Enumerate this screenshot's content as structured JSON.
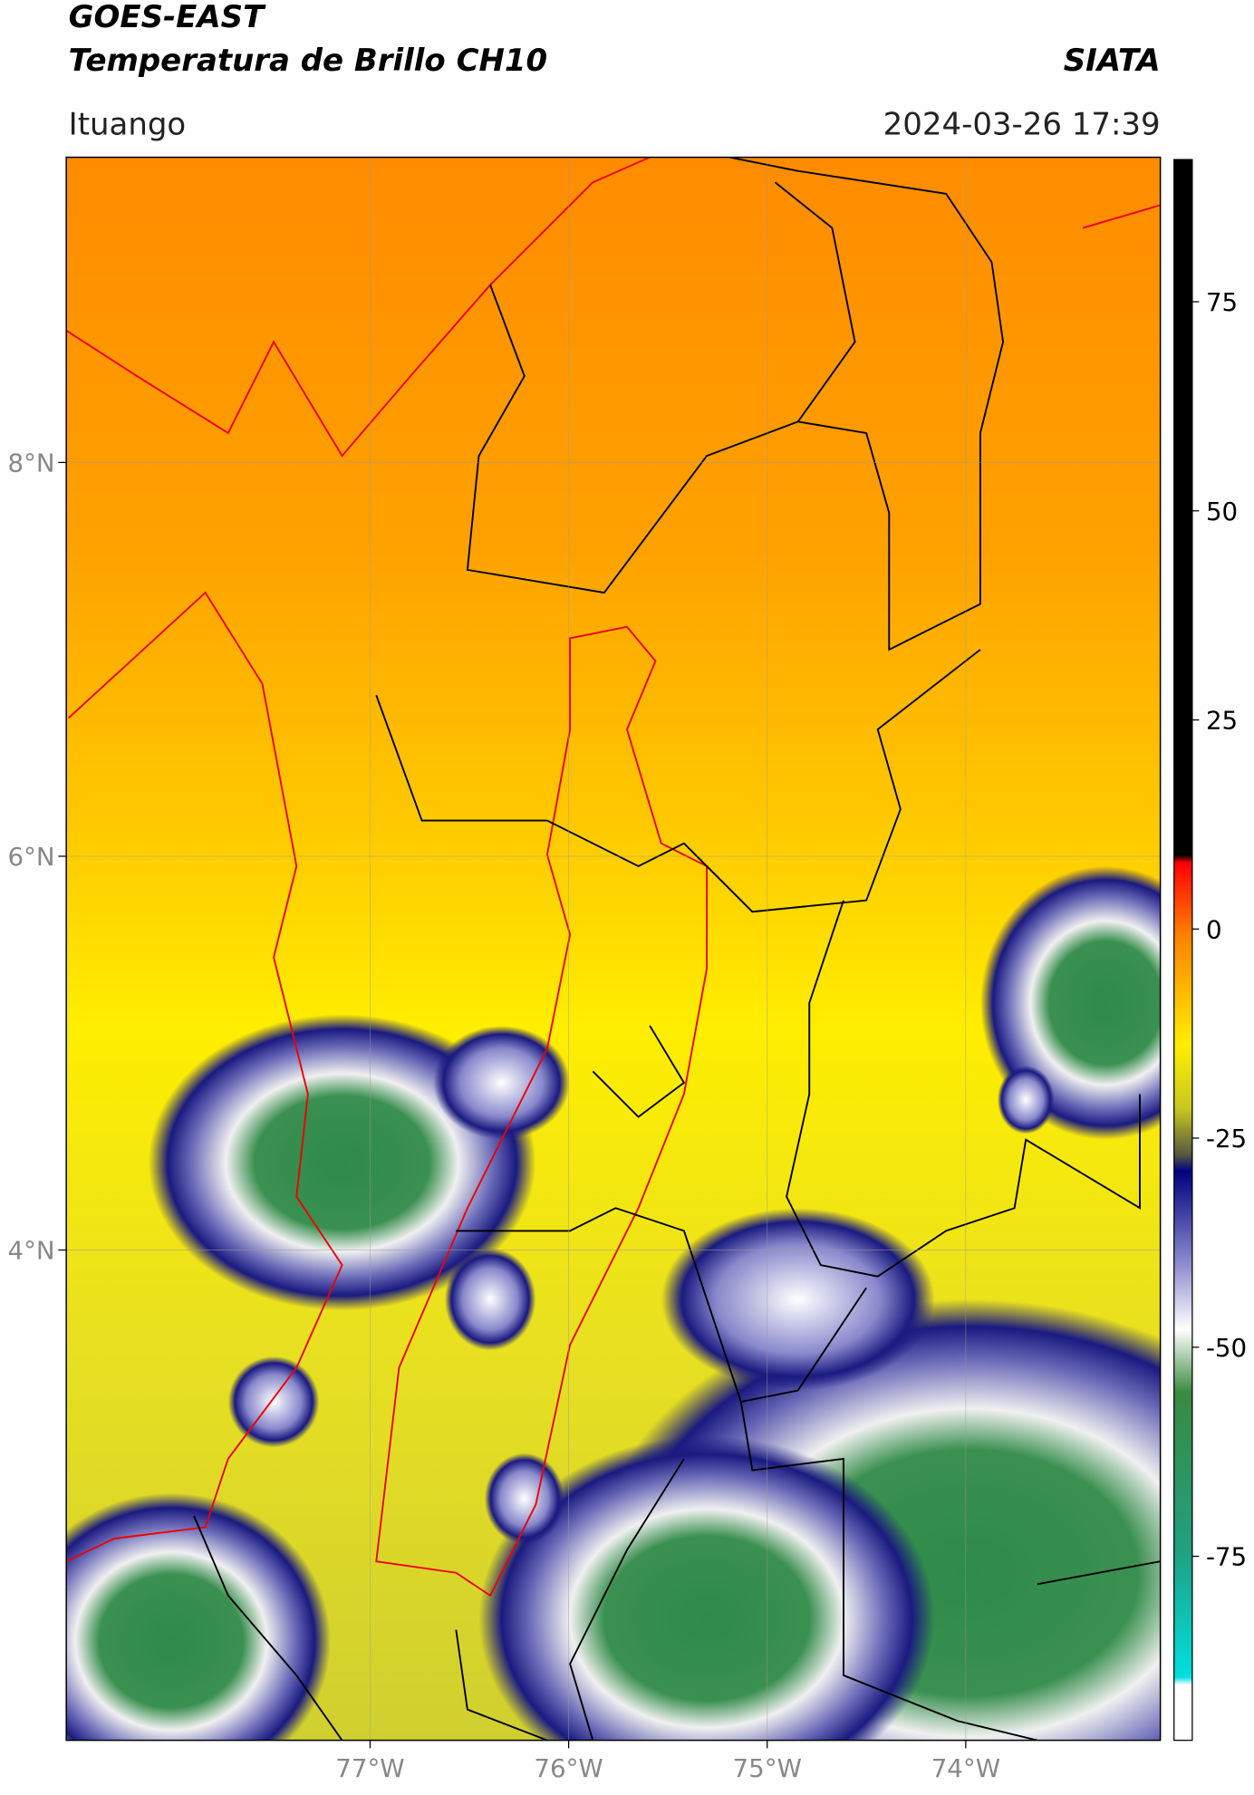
{
  "header": {
    "satellite": "GOES-EAST",
    "product": "Temperatura de Brillo CH10",
    "source": "SIATA",
    "region": "Ituango",
    "timestamp": "2024-03-26 17:39"
  },
  "map": {
    "xlim": [
      -78.53,
      -73.02
    ],
    "ylim": [
      1.51,
      9.55
    ],
    "xticks": [
      {
        "value": -77,
        "label": "77°W"
      },
      {
        "value": -76,
        "label": "76°W"
      },
      {
        "value": -75,
        "label": "75°W"
      },
      {
        "value": -74,
        "label": "74°W"
      }
    ],
    "yticks": [
      {
        "value": 4,
        "label": "4°N"
      },
      {
        "value": 6,
        "label": "6°N"
      },
      {
        "value": 8,
        "label": "8°N"
      }
    ],
    "grid": true
  },
  "colorbar": {
    "lim": [
      -97,
      92
    ],
    "ticks": [
      -75,
      -50,
      -25,
      0,
      25,
      50,
      75
    ]
  }
}
